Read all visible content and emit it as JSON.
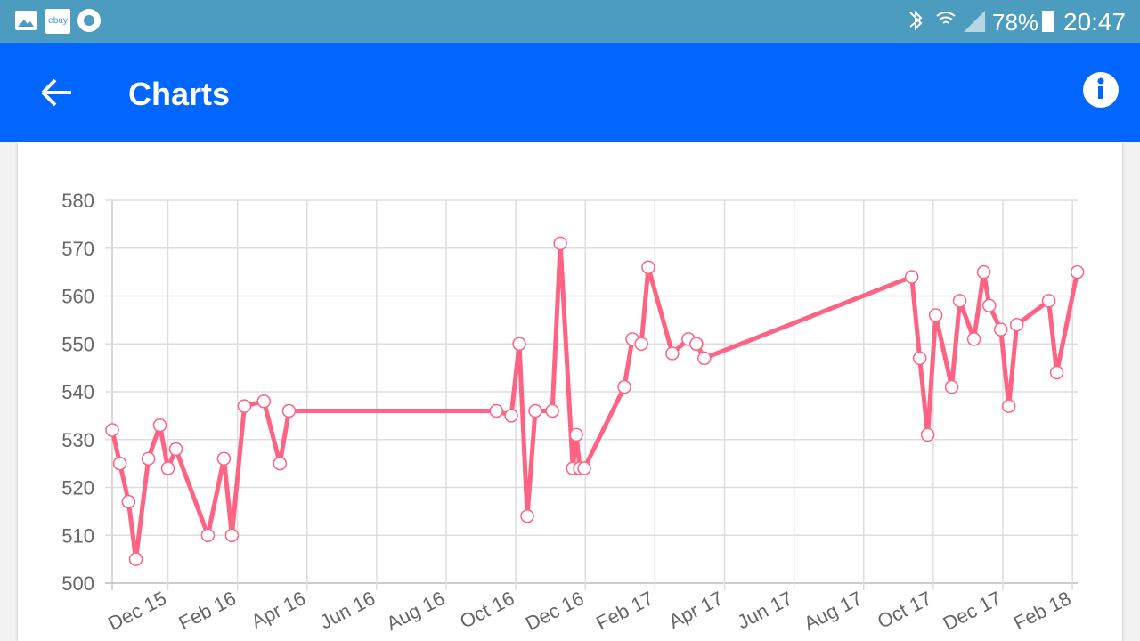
{
  "status_bar": {
    "ebay": "ebay",
    "battery": "78%",
    "time": "20:47"
  },
  "app_bar": {
    "title": "Charts"
  },
  "chart_data": {
    "type": "line",
    "x": [
      0.4,
      0.62,
      0.87,
      1.08,
      1.44,
      1.77,
      2.0,
      2.23,
      3.15,
      3.61,
      3.84,
      4.2,
      4.76,
      5.22,
      5.48,
      11.44,
      11.87,
      12.1,
      12.33,
      12.56,
      13.05,
      13.28,
      13.64,
      13.74,
      13.84,
      13.97,
      15.12,
      15.35,
      15.61,
      15.81,
      16.5,
      16.96,
      17.19,
      17.42,
      23.38,
      23.61,
      23.84,
      24.07,
      24.53,
      24.76,
      25.17,
      25.45,
      25.61,
      25.94,
      26.17,
      26.4,
      27.32,
      27.55,
      28.14
    ],
    "values": [
      532,
      525,
      517,
      505,
      526,
      533,
      524,
      528,
      510,
      526,
      510,
      537,
      538,
      525,
      536,
      536,
      535,
      550,
      514,
      536,
      536,
      571,
      524,
      531,
      524,
      524,
      541,
      551,
      550,
      566,
      548,
      551,
      550,
      547,
      564,
      547,
      531,
      556,
      541,
      559,
      551,
      565,
      558,
      553,
      537,
      554,
      559,
      544,
      565
    ],
    "color": "#ff6384",
    "xlim": [
      0.4,
      28.15
    ],
    "xticks": [
      {
        "value": 2,
        "label": "Dec 15"
      },
      {
        "value": 4,
        "label": "Feb 16"
      },
      {
        "value": 6,
        "label": "Apr 16"
      },
      {
        "value": 8,
        "label": "Jun 16"
      },
      {
        "value": 10,
        "label": "Aug 16"
      },
      {
        "value": 12,
        "label": "Oct 16"
      },
      {
        "value": 14,
        "label": "Dec 16"
      },
      {
        "value": 16,
        "label": "Feb 17"
      },
      {
        "value": 18,
        "label": "Apr 17"
      },
      {
        "value": 20,
        "label": "Jun 17"
      },
      {
        "value": 22,
        "label": "Aug 17"
      },
      {
        "value": 24,
        "label": "Oct 17"
      },
      {
        "value": 26,
        "label": "Dec 17"
      },
      {
        "value": 28,
        "label": "Feb 18"
      }
    ],
    "ylim": [
      500,
      580
    ],
    "yticks": [
      500,
      510,
      520,
      530,
      540,
      550,
      560,
      570,
      580
    ],
    "grid": true
  }
}
